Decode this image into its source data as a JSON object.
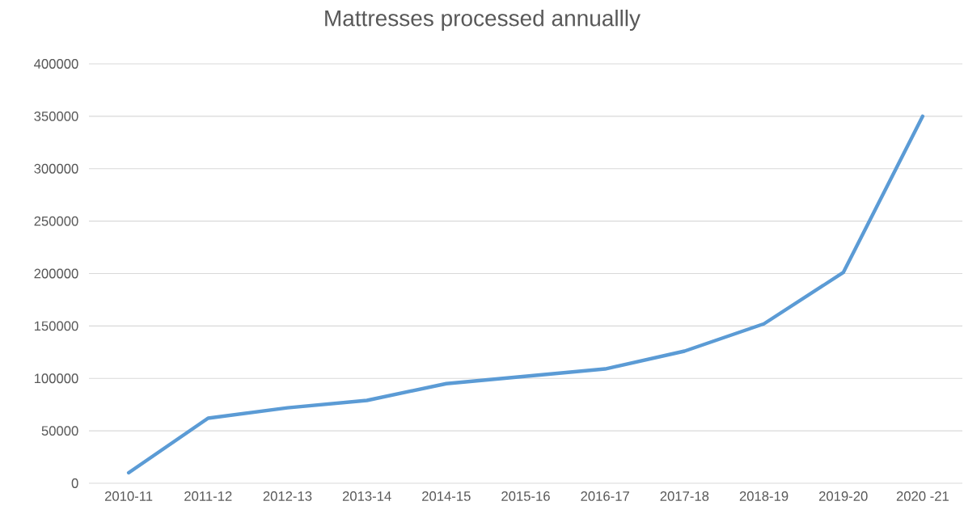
{
  "chart_data": {
    "type": "line",
    "title": "Mattresses processed annuallly",
    "categories": [
      "2010-11",
      "2011-12",
      "2012-13",
      "2013-14",
      "2014-15",
      "2015-16",
      "2016-17",
      "2017-18",
      "2018-19",
      "2019-20",
      "2020 -21"
    ],
    "values": [
      10000,
      62000,
      72000,
      79000,
      95000,
      102000,
      109000,
      126000,
      152000,
      201000,
      350000
    ],
    "color": "#5b9bd5",
    "ylim": [
      0,
      400000
    ],
    "yticks": [
      0,
      50000,
      100000,
      150000,
      200000,
      250000,
      300000,
      350000,
      400000
    ],
    "grid": "y"
  }
}
